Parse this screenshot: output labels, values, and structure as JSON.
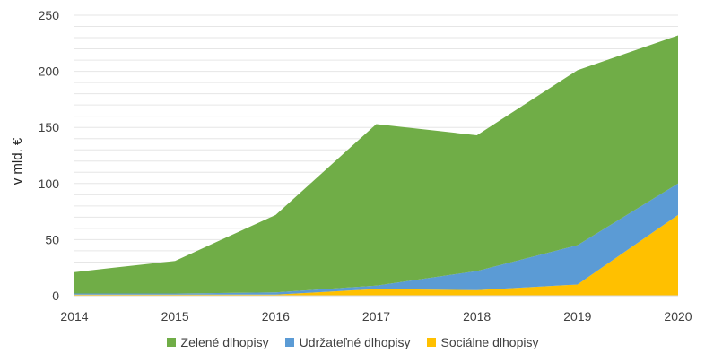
{
  "chart_data": {
    "type": "area",
    "stacked": true,
    "x": [
      "2014",
      "2015",
      "2016",
      "2017",
      "2018",
      "2019",
      "2020"
    ],
    "series": [
      {
        "name": "Sociálne dlhopisy",
        "color": "#FFC000",
        "values": [
          1,
          1,
          1,
          6,
          5,
          10,
          72
        ]
      },
      {
        "name": "Udržateľné dlhopisy",
        "color": "#5B9BD5",
        "values": [
          1,
          1,
          2,
          3,
          17,
          35,
          28
        ]
      },
      {
        "name": "Zelené dlhopisy",
        "color": "#70AD47",
        "values": [
          19,
          29,
          69,
          144,
          121,
          156,
          132
        ]
      }
    ],
    "legend_order": [
      "Zelené dlhopisy",
      "Udržateľné dlhopisy",
      "Sociálne dlhopisy"
    ],
    "ylabel": "v mld. €",
    "xlabel": "",
    "ylim": [
      0,
      250
    ],
    "yticks": [
      "0",
      "50",
      "100",
      "150",
      "200",
      "250"
    ],
    "grid": true,
    "legend_position": "bottom"
  }
}
